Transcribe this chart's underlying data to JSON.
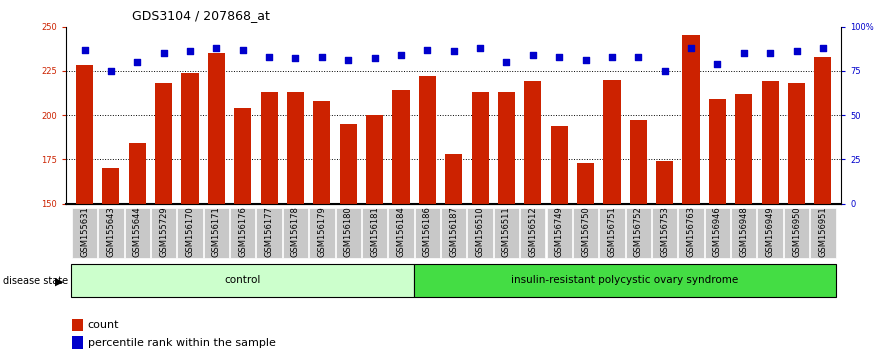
{
  "title": "GDS3104 / 207868_at",
  "samples": [
    "GSM155631",
    "GSM155643",
    "GSM155644",
    "GSM155729",
    "GSM156170",
    "GSM156171",
    "GSM156176",
    "GSM156177",
    "GSM156178",
    "GSM156179",
    "GSM156180",
    "GSM156181",
    "GSM156184",
    "GSM156186",
    "GSM156187",
    "GSM156510",
    "GSM156511",
    "GSM156512",
    "GSM156749",
    "GSM156750",
    "GSM156751",
    "GSM156752",
    "GSM156753",
    "GSM156763",
    "GSM156946",
    "GSM156948",
    "GSM156949",
    "GSM156950",
    "GSM156951"
  ],
  "bar_values": [
    228,
    170,
    184,
    218,
    224,
    235,
    204,
    213,
    213,
    208,
    195,
    200,
    214,
    222,
    178,
    213,
    213,
    219,
    194,
    173,
    220,
    197,
    174,
    245,
    209,
    212,
    219,
    218,
    233
  ],
  "percentile_values": [
    87,
    75,
    80,
    85,
    86,
    88,
    87,
    83,
    82,
    83,
    81,
    82,
    84,
    87,
    86,
    88,
    80,
    84,
    83,
    81,
    83,
    83,
    75,
    88,
    79,
    85,
    85,
    86,
    88
  ],
  "group_labels": [
    "control",
    "insulin-resistant polycystic ovary syndrome"
  ],
  "group_counts": [
    13,
    16
  ],
  "control_color": "#ccffcc",
  "disease_color": "#44dd44",
  "bar_color": "#cc2200",
  "percentile_color": "#0000cc",
  "ylim_left": [
    150,
    250
  ],
  "ylim_right": [
    0,
    100
  ],
  "yticks_left": [
    150,
    175,
    200,
    225,
    250
  ],
  "yticks_right": [
    0,
    25,
    50,
    75,
    100
  ],
  "ytick_labels_right": [
    "0",
    "25",
    "50",
    "75",
    "100%"
  ],
  "plot_bg_color": "#ffffff",
  "tick_bg_color": "#c8c8c8",
  "title_fontsize": 9,
  "tick_fontsize": 6,
  "group_fontsize": 7.5,
  "legend_fontsize": 8
}
